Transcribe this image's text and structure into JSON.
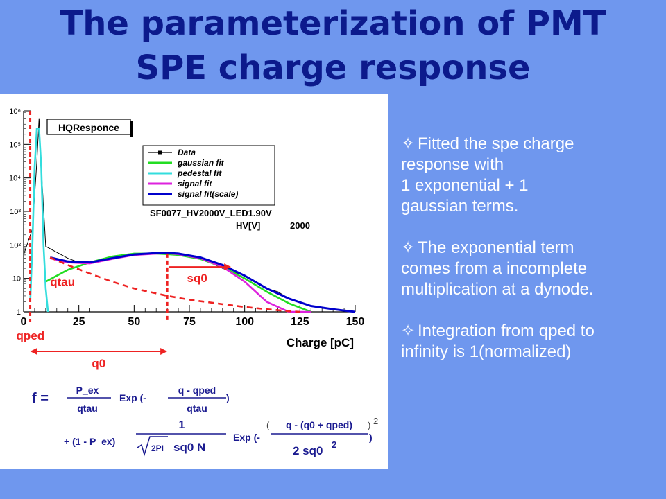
{
  "slide": {
    "title_line1": "The parameterization of PMT",
    "title_line2": "SPE charge response",
    "bullets": [
      {
        "marker": "✧",
        "lines": [
          "Fitted the spe charge",
          "response with",
          "1 exponential + 1",
          "gaussian terms."
        ]
      },
      {
        "marker": "✧",
        "lines": [
          "The exponential term",
          "comes from a incomplete",
          "multiplication at a dynode."
        ]
      },
      {
        "marker": "✧",
        "lines": [
          "Integration from qped to",
          "infinity is 1(normalized)"
        ]
      }
    ]
  },
  "chart_data": {
    "type": "line",
    "title": "HQResponce",
    "subtitle": "SF0077_HV2000V_LED1.90V",
    "stat_label": "HV[V]",
    "stat_value": "2000",
    "xlabel": "Charge [pC]",
    "ylabel": "",
    "log_y": true,
    "xlim": [
      0,
      150
    ],
    "ylim": [
      1,
      1000000
    ],
    "x_ticks": [
      "0",
      "25",
      "50",
      "75",
      "100",
      "125",
      "150"
    ],
    "y_ticks": [
      "1",
      "10",
      "10²",
      "10³",
      "10⁴",
      "10⁵",
      "10⁶"
    ],
    "legend_position": "top-right",
    "series": [
      {
        "name": "Data",
        "color": "#000000",
        "x": [
          0,
          4,
          6,
          7,
          8,
          10,
          15,
          20,
          25,
          30,
          40,
          50,
          60,
          65,
          70,
          80,
          90,
          100,
          105,
          110,
          115,
          120,
          125,
          130,
          135,
          140,
          145,
          150
        ],
        "values": [
          50,
          300,
          30000,
          600000,
          20000,
          90,
          60,
          40,
          30,
          30,
          40,
          50,
          55,
          60,
          55,
          40,
          20,
          12,
          8,
          5,
          4,
          2.5,
          2,
          1.5,
          1.3,
          1.2,
          1.1,
          1
        ]
      },
      {
        "name": "gaussian  fit",
        "color": "#22dd22",
        "x": [
          10,
          20,
          30,
          40,
          50,
          60,
          65,
          70,
          80,
          90,
          100,
          110,
          120,
          130
        ],
        "values": [
          8,
          18,
          30,
          45,
          55,
          55,
          53,
          50,
          38,
          22,
          10,
          4,
          1.8,
          1
        ]
      },
      {
        "name": "pedestal  fit",
        "color": "#33dddd",
        "x": [
          3,
          4,
          5,
          6,
          7,
          8,
          9,
          10,
          11
        ],
        "values": [
          2,
          100,
          20000,
          300000,
          300000,
          20000,
          100,
          5,
          1
        ]
      },
      {
        "name": "signal  fit",
        "color": "#dd22dd",
        "x": [
          12,
          20,
          30,
          40,
          50,
          60,
          65,
          70,
          80,
          90,
          100,
          110,
          120,
          130
        ],
        "values": [
          40,
          30,
          28,
          38,
          50,
          55,
          56,
          53,
          40,
          22,
          8,
          2,
          1,
          1
        ]
      },
      {
        "name": "signal  fit(scale)",
        "color": "#0000cc",
        "x": [
          12,
          20,
          30,
          40,
          50,
          60,
          65,
          70,
          80,
          90,
          100,
          110,
          120,
          130,
          140,
          150
        ],
        "values": [
          42,
          32,
          30,
          40,
          52,
          57,
          58,
          55,
          42,
          25,
          12,
          5,
          2.5,
          1.5,
          1.2,
          1
        ]
      },
      {
        "name": "",
        "color": "#ee2222",
        "x": [
          12,
          20,
          30,
          40,
          50,
          65,
          75,
          90,
          100,
          110,
          120,
          125
        ],
        "values": [
          42,
          25,
          14,
          8,
          5,
          3,
          2.3,
          1.7,
          1.4,
          1.2,
          1.05,
          1
        ]
      }
    ],
    "annotations": {
      "qped": "qped",
      "q0": "q0",
      "qtau": "qtau",
      "sq0": "sq0"
    }
  },
  "formula": {
    "lhs": "f =",
    "t1_num": "P_ex",
    "t1_den": "qtau",
    "t1_exp": "Exp (-",
    "t1_exp_num": "q - qped",
    "t1_exp_den": "qtau",
    "t1_close": ")",
    "t2_prefix": "+ (1 - P_ex)",
    "t2_num": "1",
    "t2_root": "2PI",
    "t2_den_tail": "sq0  N",
    "t2_exp": "Exp (-",
    "t2_exp_num": "q - (q0 + qped)",
    "t2_exp_den": "2 sq0",
    "t2_exp_den_sup": "2",
    "t2_close": ")",
    "t2_outer_sup": "2"
  }
}
